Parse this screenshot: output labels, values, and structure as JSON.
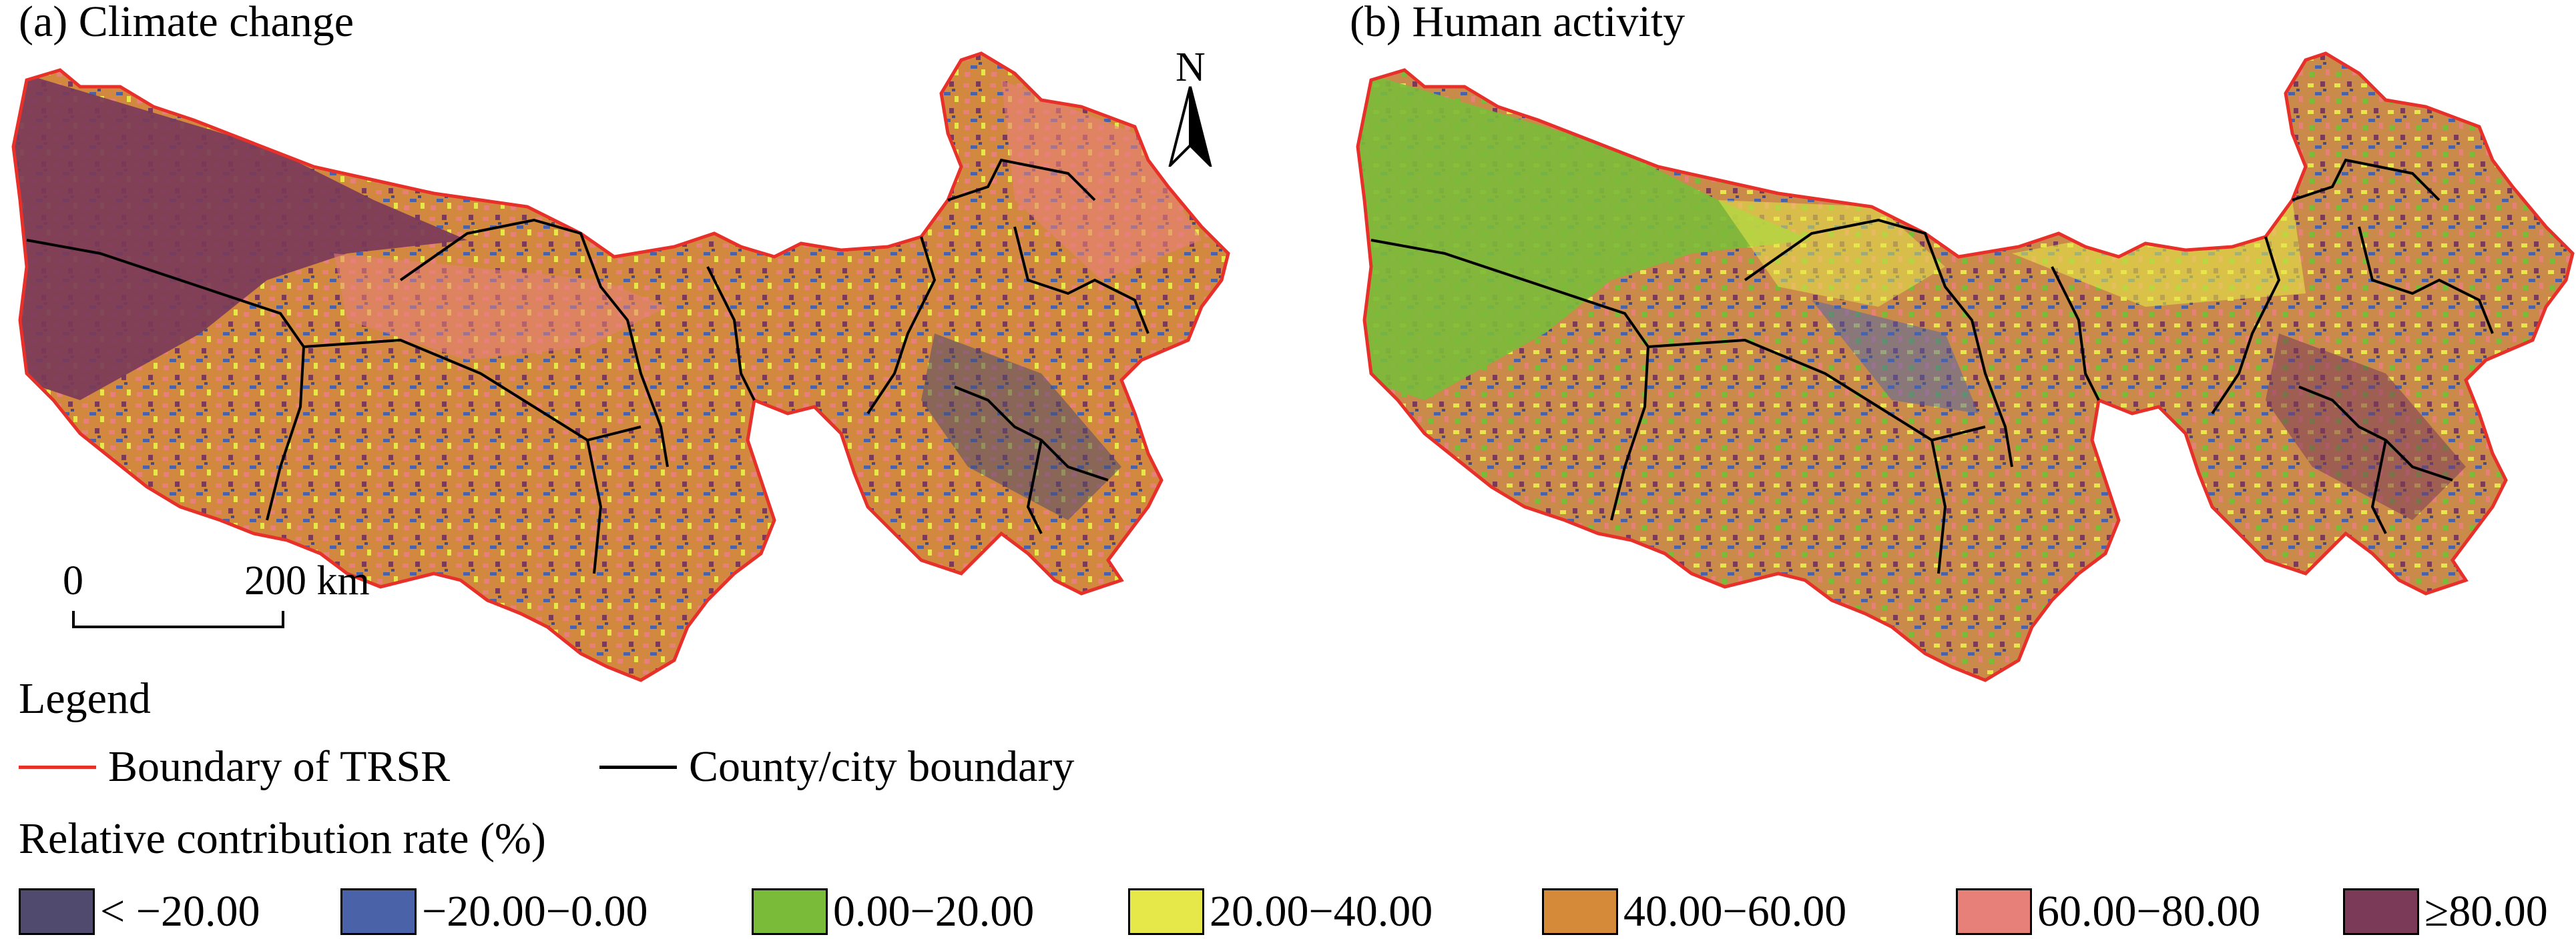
{
  "panels": [
    {
      "id": "a",
      "title": "(a) Climate change"
    },
    {
      "id": "b",
      "title": "(b) Human activity"
    }
  ],
  "north_arrow": {
    "label": "N"
  },
  "scale_bar": {
    "start": "0",
    "end": "200 km"
  },
  "legend": {
    "heading": "Legend",
    "boundary_trsr": {
      "label": "Boundary of TRSR",
      "color": "#e8302a"
    },
    "county_boundary": {
      "label": "County/city boundary",
      "color": "#000000"
    },
    "subheading": "Relative contribution rate (%)",
    "classes": [
      {
        "label": "< −20.00",
        "color": "#4f4a6e"
      },
      {
        "label": "−20.00−0.00",
        "color": "#4a63a8"
      },
      {
        "label": "0.00−20.00",
        "color": "#7bbb3a"
      },
      {
        "label": "20.00−40.00",
        "color": "#e6e84a"
      },
      {
        "label": "40.00−60.00",
        "color": "#d48a38"
      },
      {
        "label": "60.00−80.00",
        "color": "#e8807a"
      },
      {
        "label": "≥80.00",
        "color": "#7a3a58"
      }
    ]
  }
}
